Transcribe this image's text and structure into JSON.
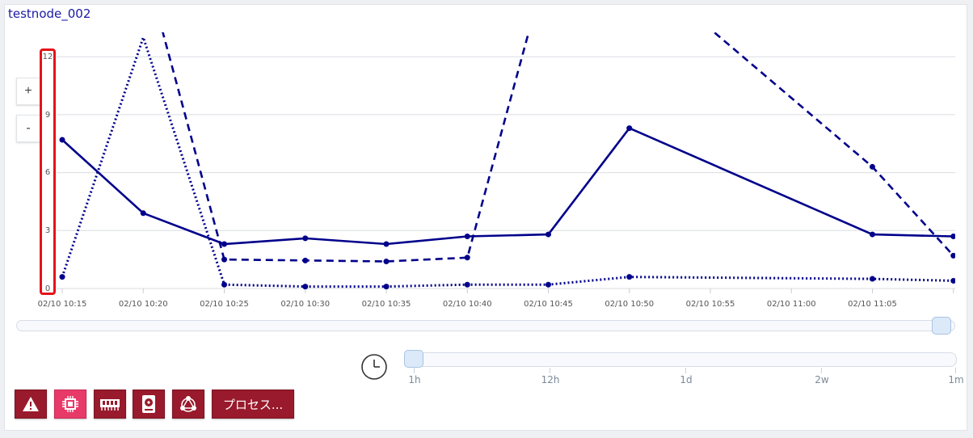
{
  "node_title": "testnode_002",
  "zoom": {
    "in_label": "+",
    "out_label": "-"
  },
  "chart_data": {
    "type": "line",
    "title": "",
    "xlabel": "",
    "ylabel": "",
    "ylim": [
      0,
      12
    ],
    "yticks": [
      "12",
      "9",
      "6",
      "3",
      "0"
    ],
    "x_tick_labels": [
      "02/10 10:15",
      "02/10 10:20",
      "02/10 10:25",
      "02/10 10:30",
      "02/10 10:35",
      "02/10 10:40",
      "02/10 10:45",
      "02/10 10:50",
      "02/10 10:55",
      "02/10 11:00",
      "02/10 11:05"
    ],
    "x_minutes": [
      0,
      5,
      10,
      15,
      20,
      25,
      30,
      35,
      50,
      55
    ],
    "x_times": [
      "10:15",
      "10:20",
      "10:25",
      "10:30",
      "10:35",
      "10:40",
      "10:45",
      "10:50",
      "11:05",
      "11:10"
    ],
    "series": [
      {
        "style": "solid",
        "values": [
          7.7,
          3.9,
          2.3,
          2.6,
          2.3,
          2.7,
          2.8,
          8.3,
          2.8,
          2.7
        ]
      },
      {
        "style": "dashed",
        "values": [
          null,
          null,
          1.5,
          1.45,
          1.4,
          1.6,
          null,
          null,
          6.3,
          1.7
        ],
        "offscale": [
          null,
          "high",
          null,
          null,
          null,
          null,
          "high",
          "high",
          null,
          null
        ]
      },
      {
        "style": "dotted",
        "values": [
          0.6,
          13.0,
          0.2,
          0.1,
          0.1,
          0.2,
          0.2,
          0.6,
          0.5,
          0.4
        ]
      }
    ],
    "grid": true,
    "legend": "none",
    "color": "#00008b"
  },
  "time_range": {
    "labels": [
      "1h",
      "12h",
      "1d",
      "2w",
      "1m"
    ],
    "selected": "1h"
  },
  "toolbar": {
    "buttons": [
      {
        "icon": "alert-icon",
        "active": false
      },
      {
        "icon": "cpu-icon",
        "active": true
      },
      {
        "icon": "memory-icon",
        "active": false
      },
      {
        "icon": "disk-icon",
        "active": false
      },
      {
        "icon": "network-icon",
        "active": false
      }
    ],
    "process_label": "プロセス..."
  }
}
